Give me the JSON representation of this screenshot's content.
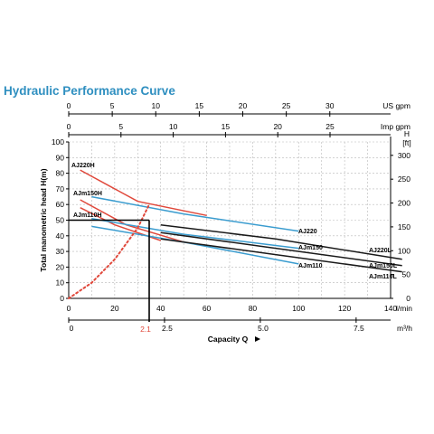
{
  "title": "Hydraulic Performance Curve",
  "colors": {
    "red": "#e0483b",
    "blue": "#3a9ccf",
    "black": "#1a1a1a",
    "grid": "#b8b8b8",
    "title": "#2f8fc0"
  },
  "chart_data": {
    "type": "line",
    "x_axes": {
      "us_gpm": {
        "label": "US gpm",
        "ticks": [
          0,
          5,
          10,
          15,
          20,
          25,
          30
        ]
      },
      "imp_gpm": {
        "label": "Imp gpm",
        "ticks": [
          0,
          5,
          10,
          15,
          20,
          25
        ]
      },
      "l_min": {
        "label": "l/min",
        "ticks": [
          0,
          20,
          40,
          60,
          80,
          100,
          120,
          140
        ]
      },
      "m3_h": {
        "label": "m³/h",
        "ticks": [
          "0",
          "2.5",
          "5.0",
          "7.5"
        ]
      }
    },
    "xlabel": "Capacity Q",
    "ylabel": "Total manometric head H(m)",
    "y_axes": {
      "left": {
        "label": "",
        "ticks": [
          0,
          10,
          20,
          30,
          40,
          50,
          60,
          70,
          80,
          90,
          100
        ],
        "ylim": [
          0,
          100
        ]
      },
      "right": {
        "label": "H [ft]",
        "ticks": [
          0,
          50,
          100,
          150,
          200,
          250,
          300
        ]
      }
    },
    "reference": {
      "label": "2.1",
      "x_m3h": 2.1,
      "y_m": 50
    },
    "series": [
      {
        "name": "AJ220H",
        "color": "red",
        "x": [
          5,
          30,
          60
        ],
        "y": [
          82,
          62,
          53
        ]
      },
      {
        "name": "AJm150H",
        "color": "red",
        "x": [
          5,
          25,
          50
        ],
        "y": [
          63,
          47,
          36
        ]
      },
      {
        "name": "AJm110H",
        "color": "red",
        "x": [
          5,
          20,
          40
        ],
        "y": [
          58,
          47,
          37
        ]
      },
      {
        "name": "AJ220",
        "color": "blue",
        "x": [
          10,
          50,
          100
        ],
        "y": [
          65,
          54,
          43
        ]
      },
      {
        "name": "AJm150",
        "color": "blue",
        "x": [
          10,
          50,
          100
        ],
        "y": [
          51,
          41,
          32
        ]
      },
      {
        "name": "AJm110",
        "color": "blue",
        "x": [
          10,
          50,
          100
        ],
        "y": [
          46,
          36,
          22
        ]
      },
      {
        "name": "AJ220L",
        "color": "black",
        "x": [
          40,
          90,
          145
        ],
        "y": [
          47,
          38,
          25
        ]
      },
      {
        "name": "AJm150L",
        "color": "black",
        "x": [
          40,
          90,
          145
        ],
        "y": [
          42,
          32,
          21
        ]
      },
      {
        "name": "AJm110L",
        "color": "black",
        "x": [
          40,
          90,
          145
        ],
        "y": [
          38,
          28,
          17
        ]
      },
      {
        "name": "",
        "color": "red",
        "style": "dotted",
        "x": [
          0,
          10,
          20,
          30,
          35
        ],
        "y": [
          0,
          10,
          25,
          45,
          60
        ]
      }
    ]
  }
}
